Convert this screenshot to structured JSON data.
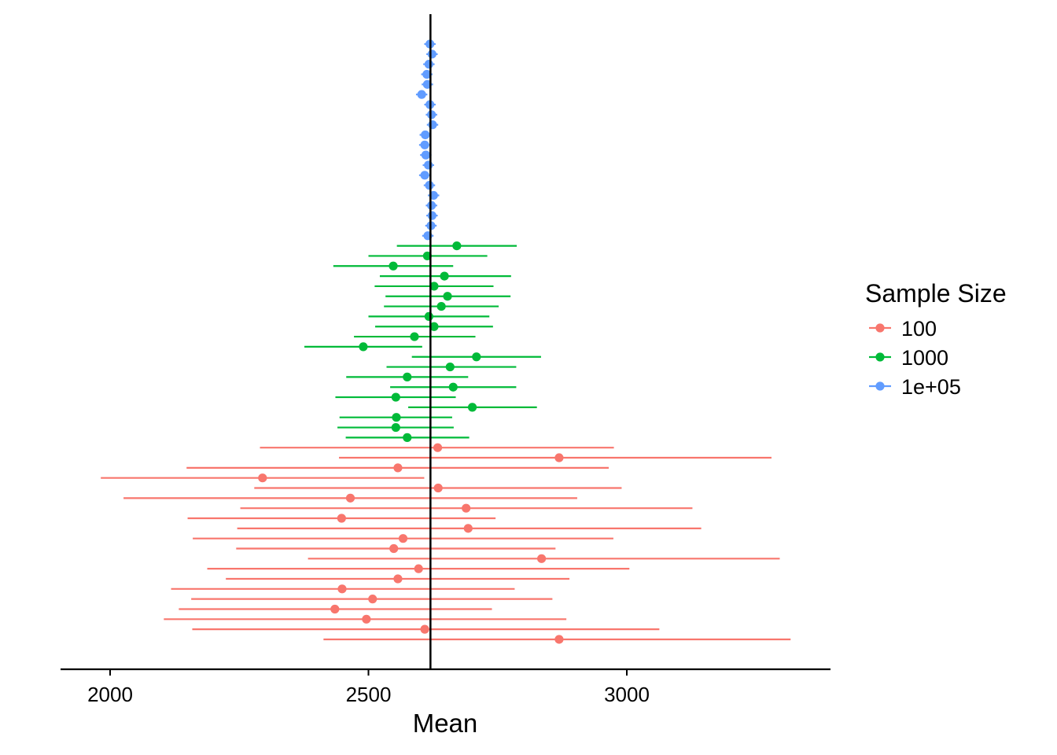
{
  "chart_data": {
    "type": "errorbar",
    "xlabel": "Mean",
    "ylabel": "",
    "xlim": [
      1910,
      3390
    ],
    "x_ticks": [
      2000,
      2500,
      3000
    ],
    "x_tick_labels": [
      "2000",
      "2500",
      "3000"
    ],
    "reference_line": 2620,
    "grid": false,
    "legend": {
      "title": "Sample Size",
      "position": "right"
    },
    "series": [
      {
        "name": "1e+05",
        "color": "#619CFF",
        "points": [
          {
            "mean": 2619,
            "lo": 2608,
            "hi": 2630
          },
          {
            "mean": 2623,
            "lo": 2612,
            "hi": 2634
          },
          {
            "mean": 2617,
            "lo": 2606,
            "hi": 2628
          },
          {
            "mean": 2613,
            "lo": 2602,
            "hi": 2624
          },
          {
            "mean": 2614,
            "lo": 2603,
            "hi": 2625
          },
          {
            "mean": 2603,
            "lo": 2592,
            "hi": 2614
          },
          {
            "mean": 2619,
            "lo": 2608,
            "hi": 2630
          },
          {
            "mean": 2622,
            "lo": 2611,
            "hi": 2633
          },
          {
            "mean": 2624,
            "lo": 2613,
            "hi": 2635
          },
          {
            "mean": 2610,
            "lo": 2599,
            "hi": 2621
          },
          {
            "mean": 2609,
            "lo": 2598,
            "hi": 2620
          },
          {
            "mean": 2611,
            "lo": 2600,
            "hi": 2622
          },
          {
            "mean": 2616,
            "lo": 2605,
            "hi": 2627
          },
          {
            "mean": 2609,
            "lo": 2598,
            "hi": 2620
          },
          {
            "mean": 2618,
            "lo": 2607,
            "hi": 2629
          },
          {
            "mean": 2626,
            "lo": 2615,
            "hi": 2637
          },
          {
            "mean": 2622,
            "lo": 2611,
            "hi": 2633
          },
          {
            "mean": 2623,
            "lo": 2612,
            "hi": 2634
          },
          {
            "mean": 2621,
            "lo": 2610,
            "hi": 2632
          },
          {
            "mean": 2615,
            "lo": 2604,
            "hi": 2626
          }
        ]
      },
      {
        "name": "1000",
        "color": "#00BA38",
        "points": [
          {
            "mean": 2671,
            "lo": 2555,
            "hi": 2787
          },
          {
            "mean": 2614,
            "lo": 2500,
            "hi": 2730
          },
          {
            "mean": 2548,
            "lo": 2432,
            "hi": 2664
          },
          {
            "mean": 2647,
            "lo": 2522,
            "hi": 2776
          },
          {
            "mean": 2627,
            "lo": 2512,
            "hi": 2742
          },
          {
            "mean": 2653,
            "lo": 2533,
            "hi": 2775
          },
          {
            "mean": 2641,
            "lo": 2530,
            "hi": 2752
          },
          {
            "mean": 2617,
            "lo": 2500,
            "hi": 2734
          },
          {
            "mean": 2627,
            "lo": 2513,
            "hi": 2741
          },
          {
            "mean": 2589,
            "lo": 2472,
            "hi": 2707
          },
          {
            "mean": 2490,
            "lo": 2376,
            "hi": 2604
          },
          {
            "mean": 2709,
            "lo": 2584,
            "hi": 2834
          },
          {
            "mean": 2658,
            "lo": 2535,
            "hi": 2786
          },
          {
            "mean": 2575,
            "lo": 2457,
            "hi": 2693
          },
          {
            "mean": 2664,
            "lo": 2542,
            "hi": 2786
          },
          {
            "mean": 2553,
            "lo": 2436,
            "hi": 2669
          },
          {
            "mean": 2701,
            "lo": 2577,
            "hi": 2826
          },
          {
            "mean": 2554,
            "lo": 2444,
            "hi": 2662
          },
          {
            "mean": 2553,
            "lo": 2440,
            "hi": 2665
          },
          {
            "mean": 2575,
            "lo": 2456,
            "hi": 2695
          }
        ]
      },
      {
        "name": "100",
        "color": "#F8766D",
        "points": [
          {
            "mean": 2634,
            "lo": 2290,
            "hi": 2975
          },
          {
            "mean": 2869,
            "lo": 2443,
            "hi": 3280
          },
          {
            "mean": 2557,
            "lo": 2148,
            "hi": 2965
          },
          {
            "mean": 2295,
            "lo": 1982,
            "hi": 2608
          },
          {
            "mean": 2635,
            "lo": 2279,
            "hi": 2990
          },
          {
            "mean": 2465,
            "lo": 2026,
            "hi": 2904
          },
          {
            "mean": 2689,
            "lo": 2252,
            "hi": 3127
          },
          {
            "mean": 2448,
            "lo": 2150,
            "hi": 2746
          },
          {
            "mean": 2693,
            "lo": 2246,
            "hi": 3144
          },
          {
            "mean": 2567,
            "lo": 2160,
            "hi": 2974
          },
          {
            "mean": 2549,
            "lo": 2244,
            "hi": 2862
          },
          {
            "mean": 2835,
            "lo": 2383,
            "hi": 3296
          },
          {
            "mean": 2597,
            "lo": 2188,
            "hi": 3005
          },
          {
            "mean": 2557,
            "lo": 2224,
            "hi": 2889
          },
          {
            "mean": 2449,
            "lo": 2118,
            "hi": 2783
          },
          {
            "mean": 2508,
            "lo": 2157,
            "hi": 2856
          },
          {
            "mean": 2435,
            "lo": 2133,
            "hi": 2739
          },
          {
            "mean": 2496,
            "lo": 2104,
            "hi": 2883
          },
          {
            "mean": 2609,
            "lo": 2159,
            "hi": 3063
          },
          {
            "mean": 2869,
            "lo": 2413,
            "hi": 3317
          }
        ]
      }
    ]
  }
}
